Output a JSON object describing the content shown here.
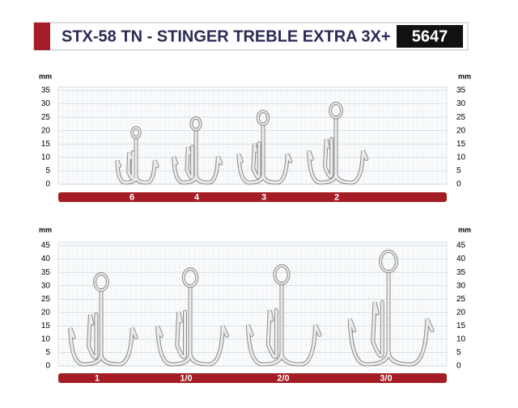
{
  "header": {
    "title": "STX-58 TN - STINGER TREBLE EXTRA 3X+",
    "code": "5647"
  },
  "panels": [
    {
      "unit": "mm",
      "scale": [
        0,
        5,
        10,
        15,
        20,
        25,
        30,
        35
      ],
      "sizes": [
        "6",
        "4",
        "3",
        "2"
      ]
    },
    {
      "unit": "mm",
      "scale": [
        0,
        5,
        10,
        15,
        20,
        25,
        30,
        35,
        40,
        45
      ],
      "sizes": [
        "1",
        "1/0",
        "2/0",
        "3/0"
      ]
    }
  ]
}
